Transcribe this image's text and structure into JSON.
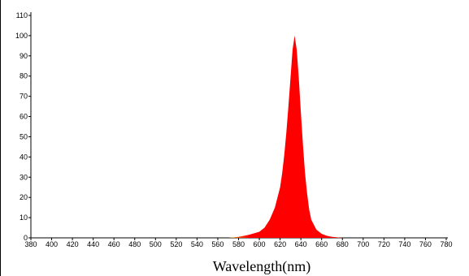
{
  "chart_data": {
    "type": "area",
    "xlabel": "Wavelength(nm)",
    "ylabel": "",
    "title": "",
    "xlim": [
      380,
      780
    ],
    "ylim": [
      0,
      110
    ],
    "x_ticks": [
      380,
      400,
      420,
      440,
      460,
      480,
      500,
      520,
      540,
      560,
      580,
      600,
      620,
      640,
      660,
      680,
      700,
      720,
      740,
      760,
      780
    ],
    "y_ticks": [
      0,
      10,
      20,
      30,
      40,
      50,
      60,
      70,
      80,
      90,
      100,
      110
    ],
    "grid": false,
    "legend": "none",
    "series": [
      {
        "color": "#ff0000",
        "x": [
          570,
          580,
          590,
          600,
          605,
          610,
          615,
          620,
          622,
          624,
          626,
          628,
          630,
          632,
          634,
          636,
          638,
          640,
          642,
          644,
          646,
          648,
          650,
          655,
          660,
          665,
          670,
          680
        ],
        "y": [
          0,
          0.5,
          1.5,
          3,
          5,
          9,
          15,
          25,
          32,
          41,
          52,
          65,
          79,
          93,
          100,
          93,
          79,
          62,
          46,
          32,
          22,
          14,
          9,
          4,
          2,
          1,
          0.5,
          0
        ]
      }
    ],
    "colors": {
      "area_fill": "#ff0000",
      "left_tail_tint": "#e8a000",
      "axis": "#000000"
    }
  }
}
